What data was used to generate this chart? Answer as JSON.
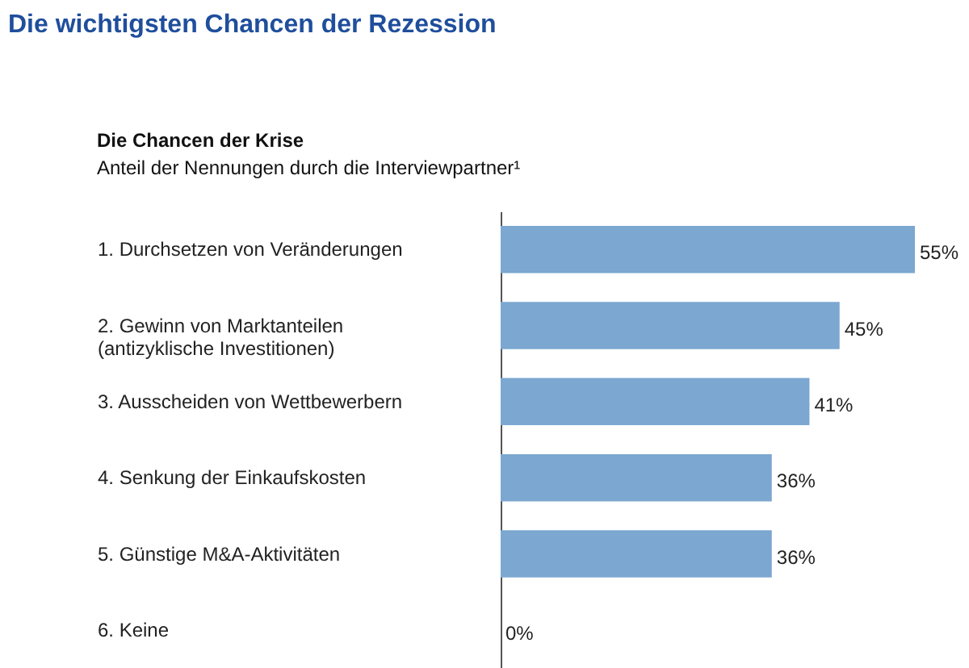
{
  "chart_data": {
    "type": "bar",
    "orientation": "horizontal",
    "title": "Die wichtigsten Chancen der Rezession",
    "subtitle": "Die Chancen der Krise",
    "annotations": [
      "Anteil der Nennungen durch die Interviewpartner¹"
    ],
    "categories": [
      "1. Durchsetzen von Veränderungen",
      "2. Gewinn von Marktanteilen\n    (antizyklische Investitionen)",
      "3. Ausscheiden von Wettbewerbern",
      "4. Senkung der Einkaufskosten",
      "5. Günstige M&A-Aktivitäten",
      "6. Keine"
    ],
    "values": [
      55,
      45,
      41,
      36,
      36,
      0
    ],
    "value_labels": [
      "55%",
      "45%",
      "41%",
      "36%",
      "36%",
      "0%"
    ],
    "color": "#7ba7d1",
    "grid": false
  }
}
